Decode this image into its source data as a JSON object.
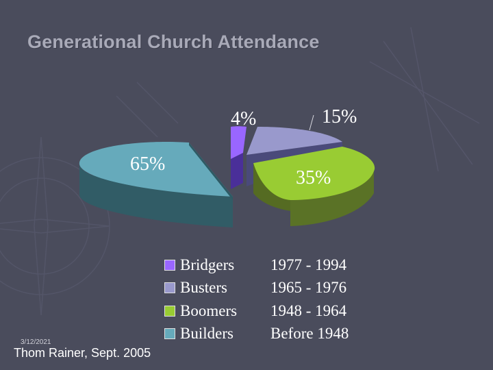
{
  "slide": {
    "title": "Generational Church Attendance",
    "date": "3/12/2021",
    "credit": "Thom Rainer, Sept. 2005"
  },
  "chart_data": {
    "type": "pie",
    "style": "3d-exploded",
    "title": "",
    "slices": [
      {
        "name": "Bridgers",
        "years": "1977 - 1994",
        "value": 4,
        "label": "4%",
        "color": "#9966ff"
      },
      {
        "name": "Busters",
        "years": "1965 - 1976",
        "value": 15,
        "label": "15%",
        "color": "#9999cc"
      },
      {
        "name": "Boomers",
        "years": "1948 - 1964",
        "value": 35,
        "label": "35%",
        "color": "#99cc33"
      },
      {
        "name": "Builders",
        "years": "Before 1948",
        "value": 65,
        "label": "65%",
        "color": "#66aabb"
      }
    ],
    "legend_position": "bottom"
  }
}
